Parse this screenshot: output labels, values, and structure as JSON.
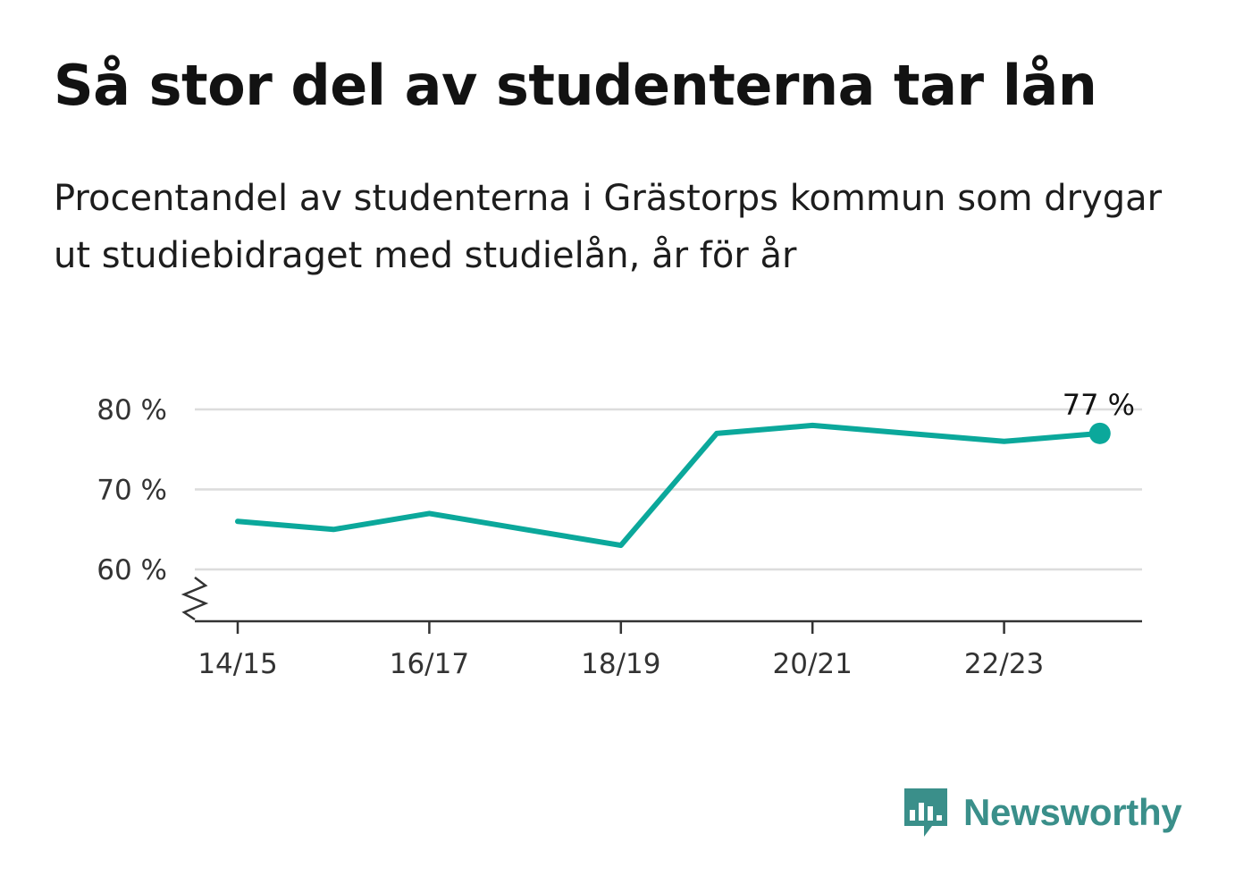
{
  "title": "Så stor del av studenterna tar lån",
  "subtitle": "Procentandel av studenterna i Grästorps kommun som drygar ut studiebidraget med studielån, år för år",
  "brand": {
    "name": "Newsworthy",
    "color": "#3a8f8a",
    "icon": "newsworthy-logo-icon"
  },
  "chart_data": {
    "type": "line",
    "title": "",
    "xlabel": "",
    "ylabel": "",
    "x": [
      "14/15",
      "15/16",
      "16/17",
      "17/18",
      "18/19",
      "19/20",
      "20/21",
      "21/22",
      "22/23",
      "23/24"
    ],
    "x_tick_labels": [
      "14/15",
      "16/17",
      "18/19",
      "20/21",
      "22/23"
    ],
    "y_ticks": [
      60,
      70,
      80
    ],
    "y_tick_labels": [
      "60 %",
      "70 %",
      "80 %"
    ],
    "ylim": [
      53.5,
      80
    ],
    "axis_break": true,
    "grid": true,
    "series": [
      {
        "values": [
          66,
          65,
          67,
          65,
          63,
          77,
          78,
          77,
          76,
          77
        ],
        "color": "#0ba89b"
      }
    ],
    "end_label": "77 %"
  }
}
